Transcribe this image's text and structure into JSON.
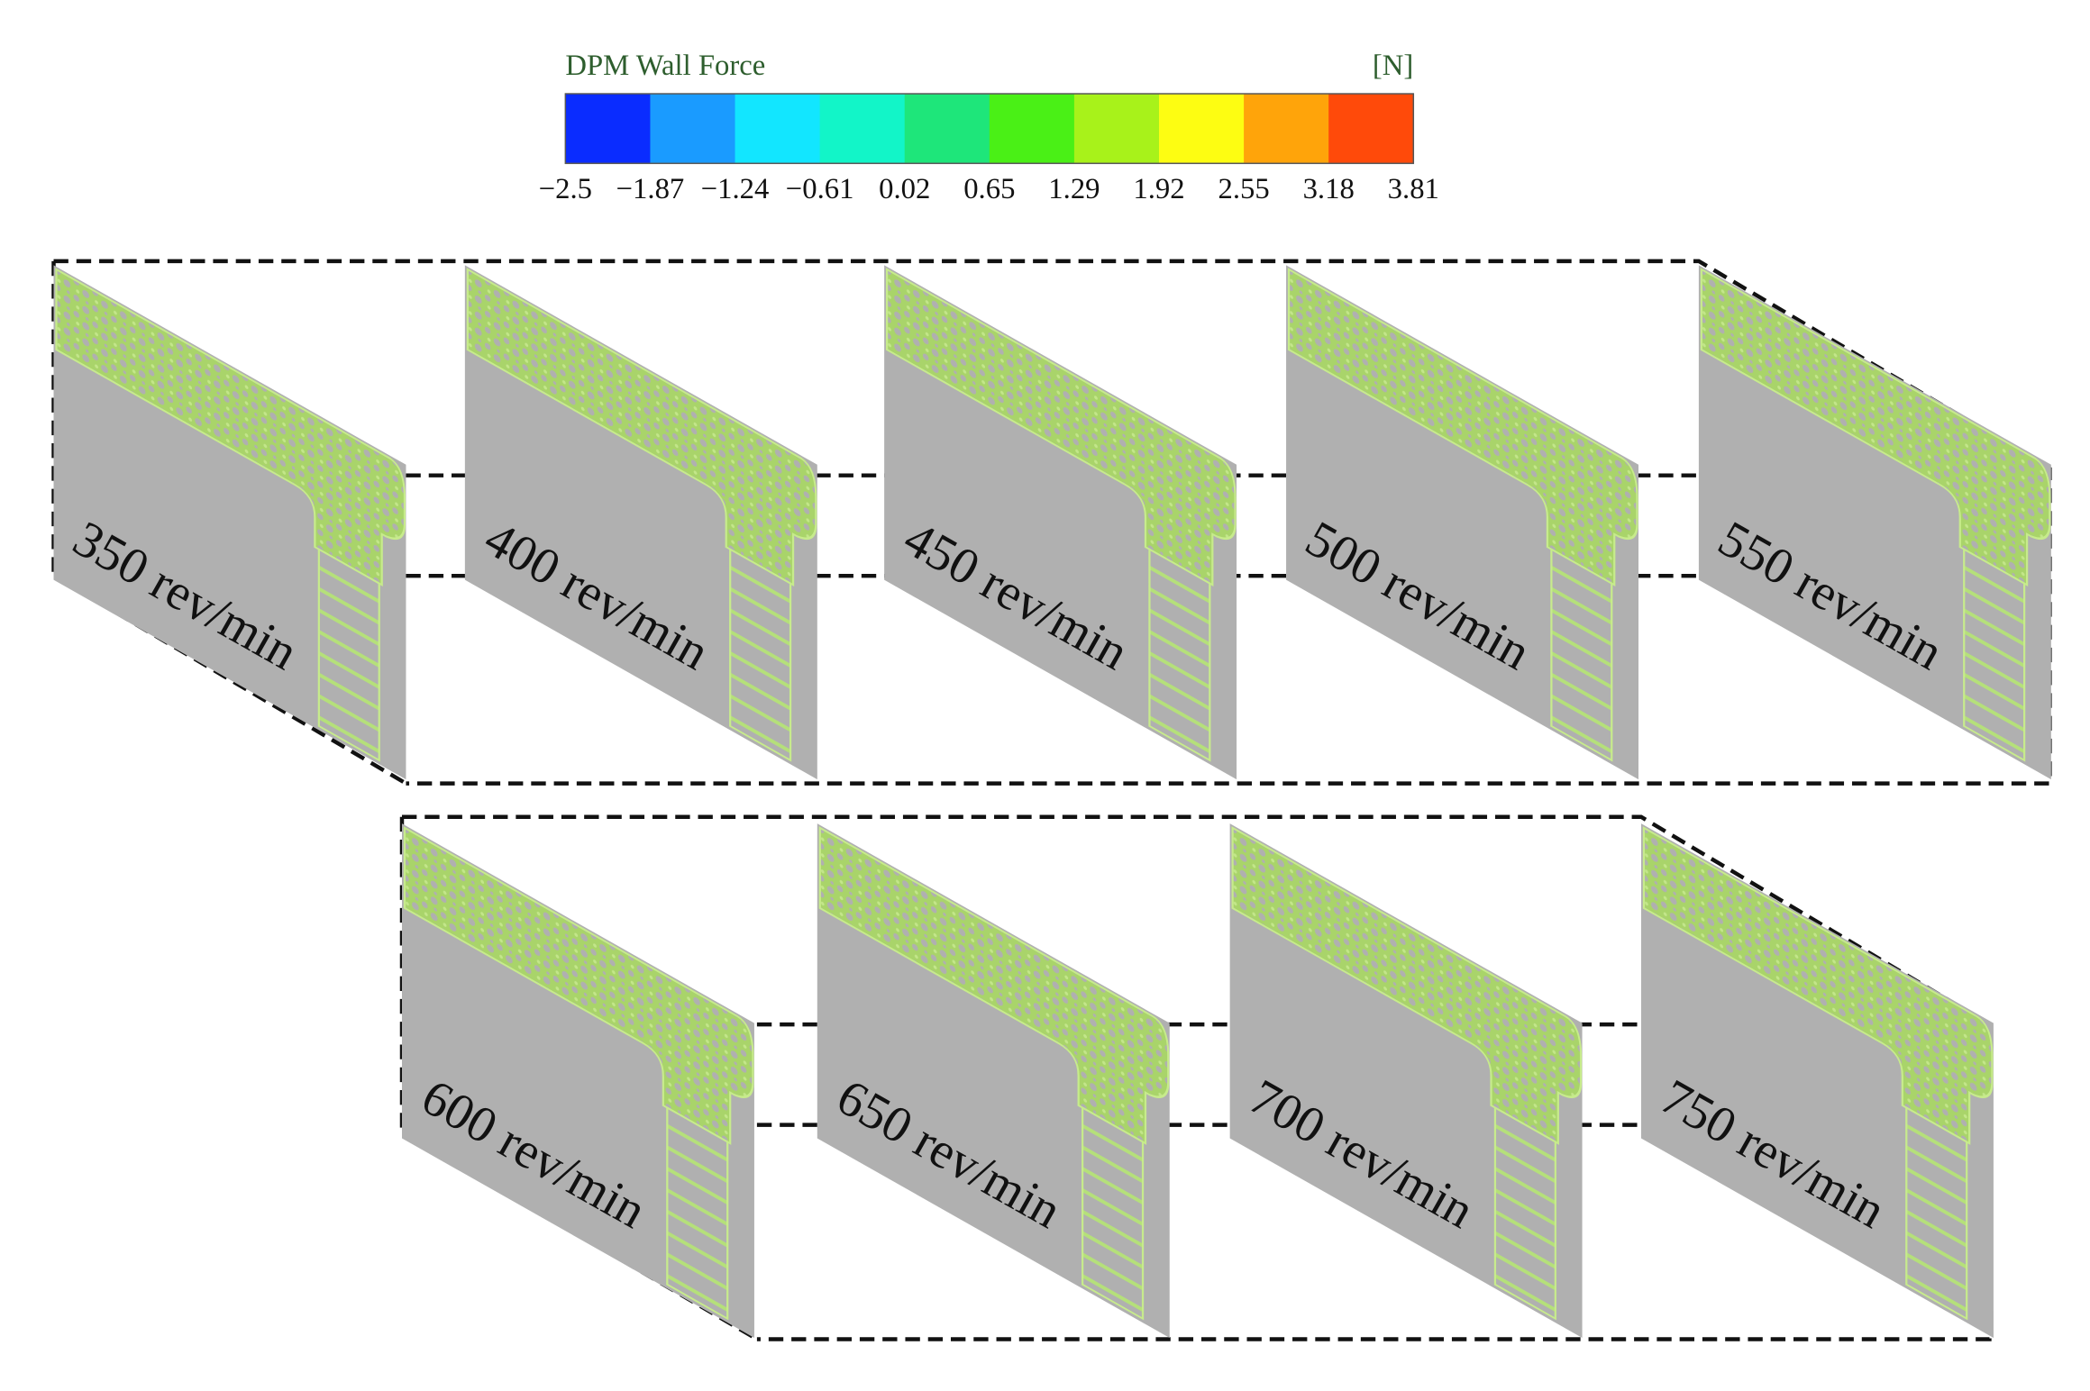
{
  "colorbar": {
    "title": "DPM Wall Force",
    "unit": "[N]",
    "ticks": [
      "−2.5",
      "−1.87",
      "−1.24",
      "−0.61",
      "0.02",
      "0.65",
      "1.29",
      "1.92",
      "2.55",
      "3.18",
      "3.81"
    ],
    "colors": [
      "#0a2cff",
      "#1a9bff",
      "#12e6ff",
      "#12f5c8",
      "#1ee67a",
      "#4af016",
      "#a8f21a",
      "#fdfd12",
      "#ffa40a",
      "#ff4a0a"
    ]
  },
  "panels": [
    {
      "label": "350 rev/min"
    },
    {
      "label": "400 rev/min"
    },
    {
      "label": "450 rev/min"
    },
    {
      "label": "500 rev/min"
    },
    {
      "label": "550 rev/min"
    },
    {
      "label": "600 rev/min"
    },
    {
      "label": "650 rev/min"
    },
    {
      "label": "700 rev/min"
    },
    {
      "label": "750 rev/min"
    }
  ]
}
